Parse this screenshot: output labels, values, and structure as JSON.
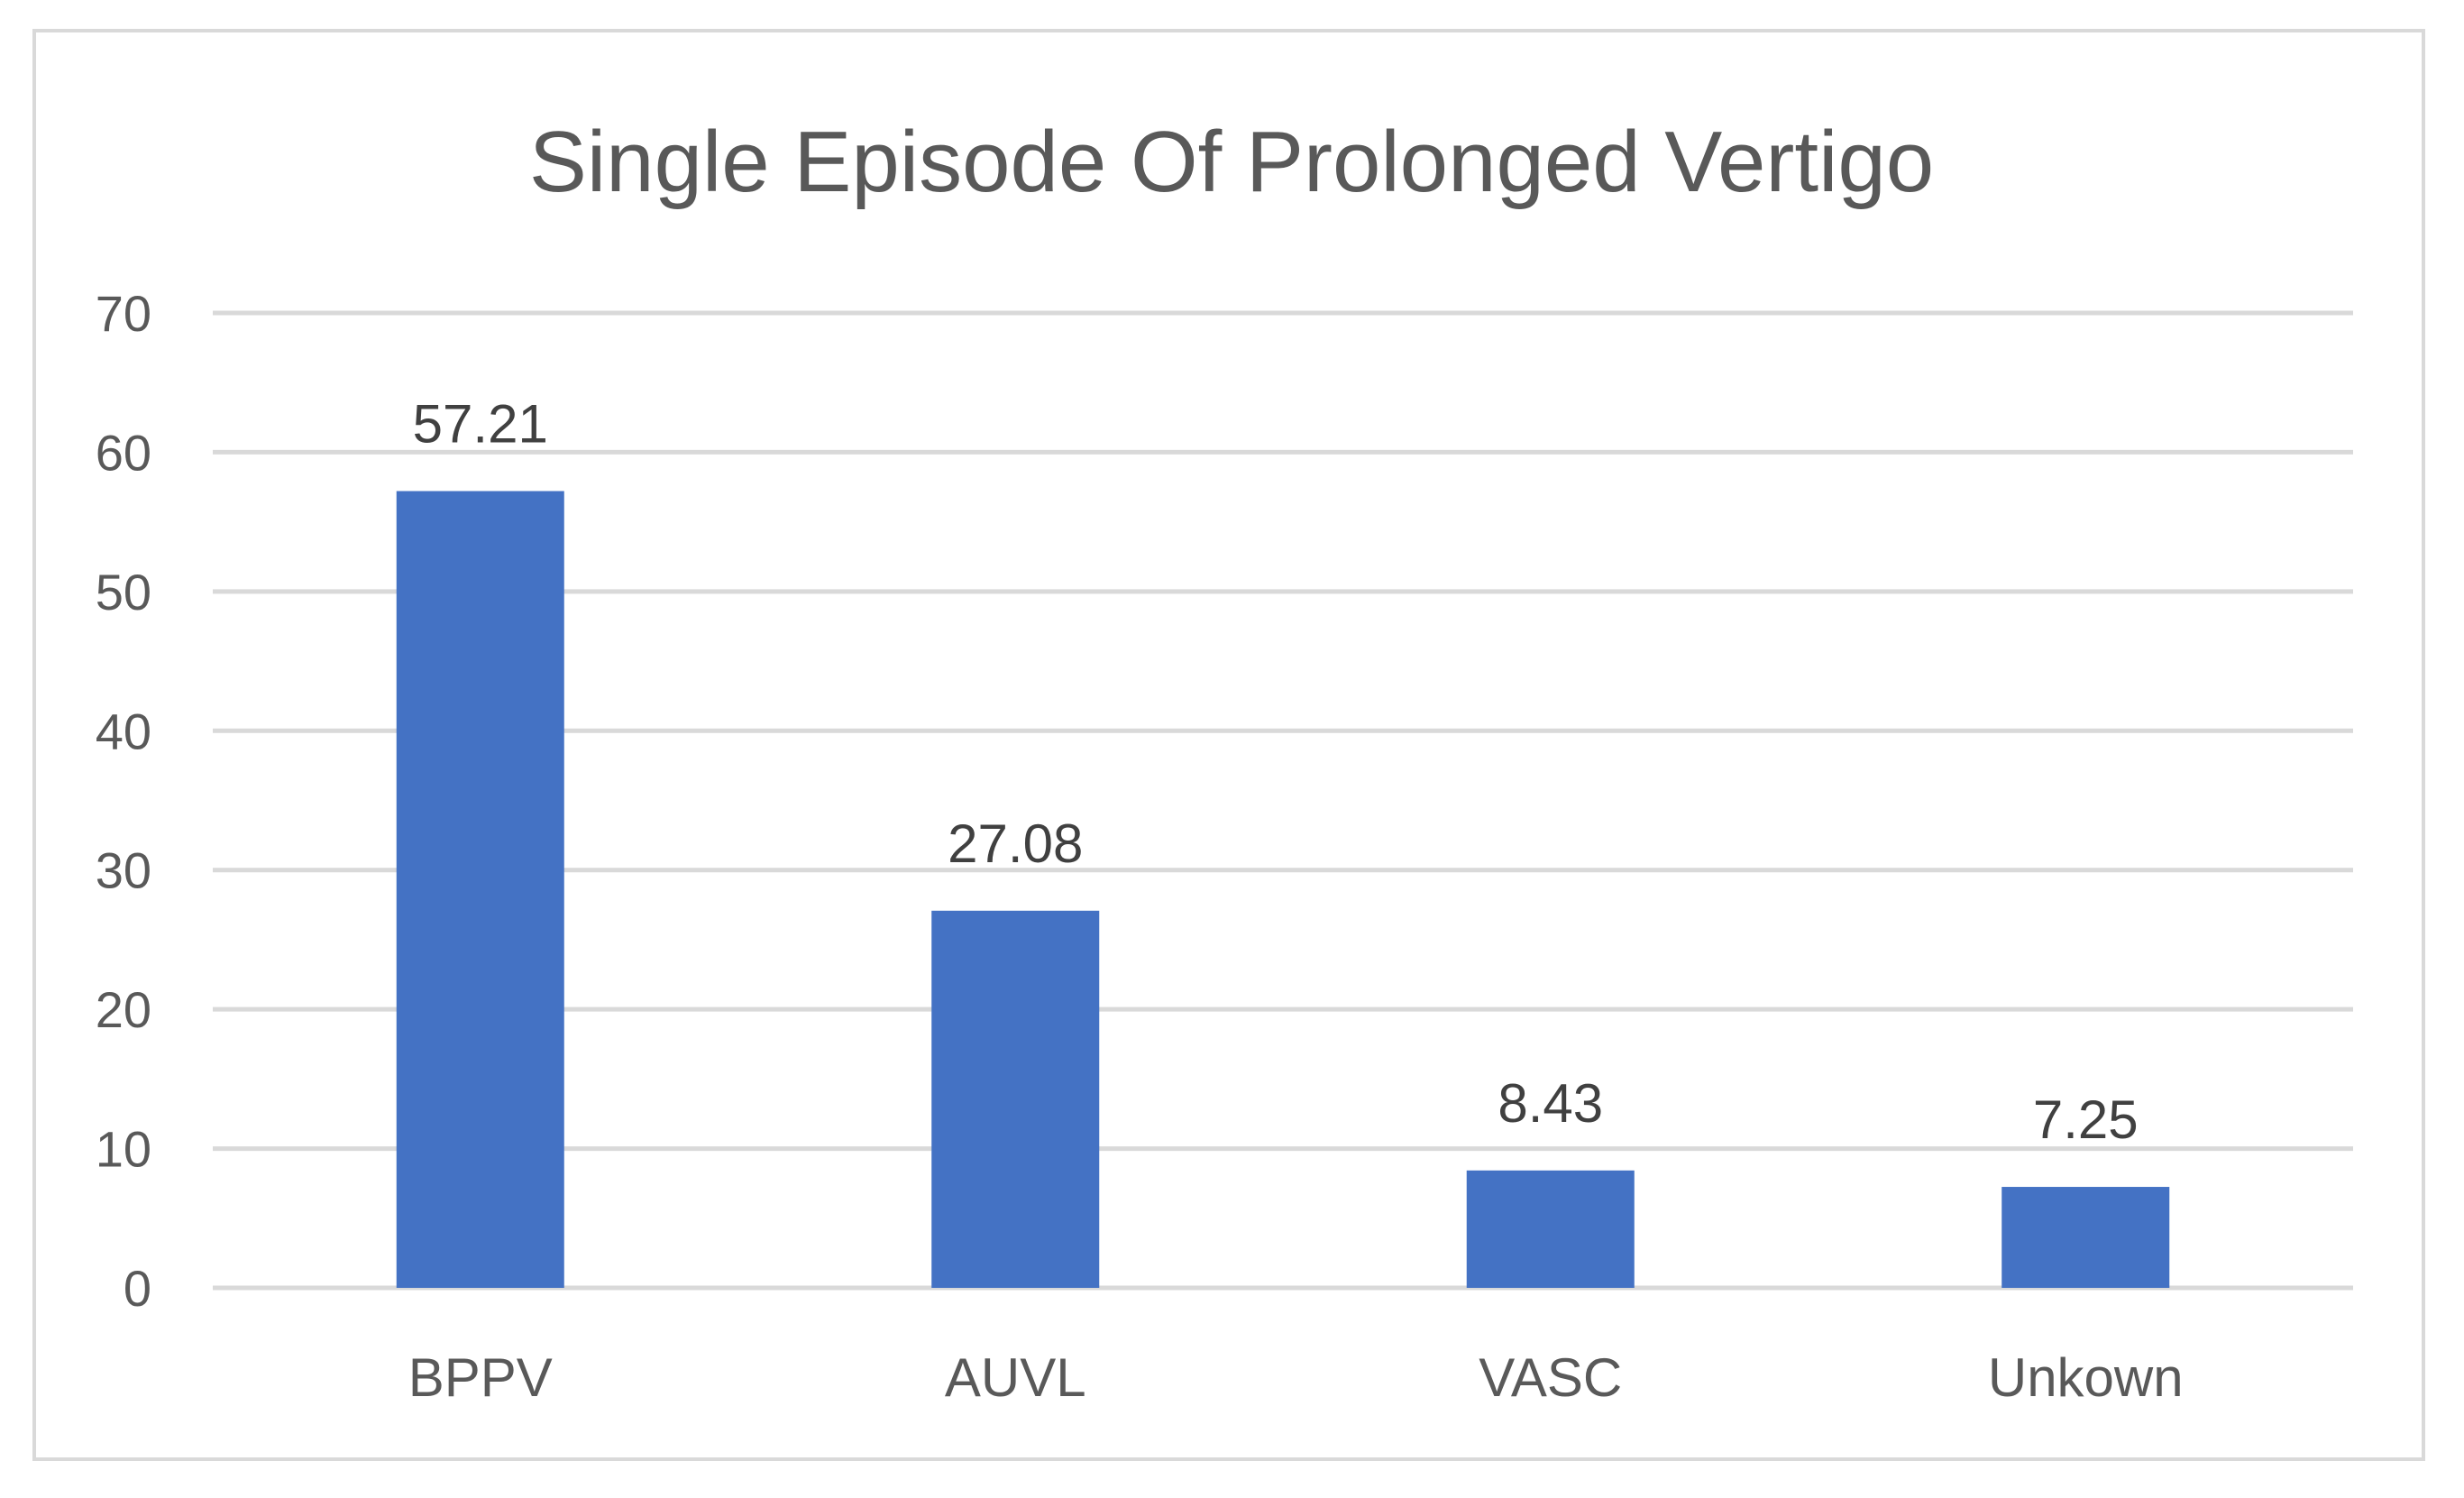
{
  "chart_data": {
    "type": "bar",
    "title": "Single Episode Of Prolonged Vertigo",
    "xlabel": "",
    "ylabel": "",
    "categories": [
      "BPPV",
      "AUVL",
      "VASC",
      "Unkown"
    ],
    "values": [
      57.21,
      27.08,
      8.43,
      7.25
    ],
    "data_labels": [
      "57.21",
      "27.08",
      "8.43",
      "7.25"
    ],
    "ylim": [
      0,
      70
    ],
    "yticks": [
      0,
      10,
      20,
      30,
      40,
      50,
      60,
      70
    ],
    "grid": true,
    "legend": "none",
    "colors": {
      "bar": "#4472c4",
      "grid": "#d9d9d9",
      "text": "#595959",
      "data_label": "#404040"
    }
  }
}
